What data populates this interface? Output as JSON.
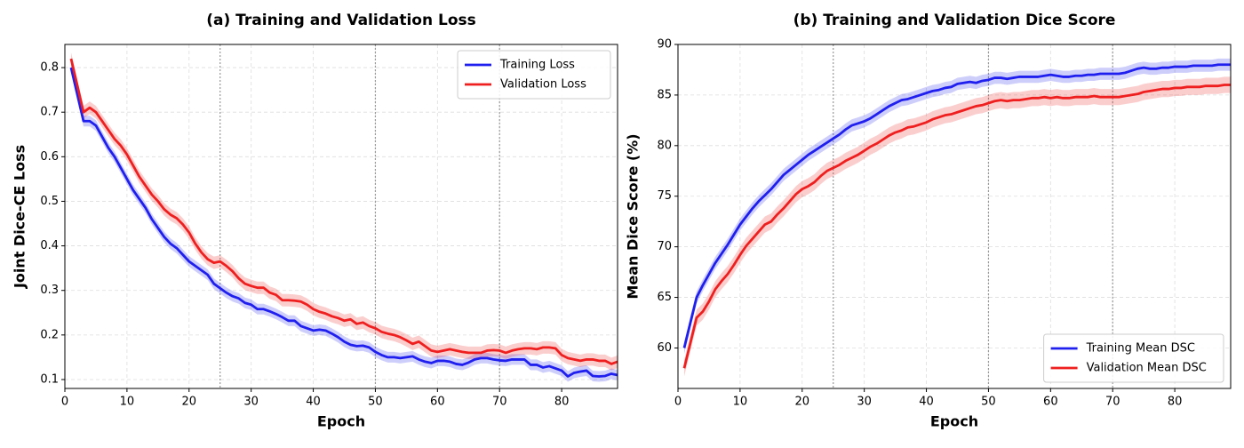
{
  "chart_data": [
    {
      "type": "line",
      "title": "(a) Training and Validation Loss",
      "x_label": "Epoch",
      "y_label": "Joint Dice-CE Loss",
      "x": [
        1,
        2,
        3,
        4,
        5,
        6,
        7,
        8,
        9,
        10,
        11,
        12,
        13,
        14,
        15,
        16,
        17,
        18,
        19,
        20,
        21,
        22,
        23,
        24,
        25,
        26,
        27,
        28,
        29,
        30,
        31,
        32,
        33,
        34,
        35,
        36,
        37,
        38,
        39,
        40,
        41,
        42,
        43,
        44,
        45,
        46,
        47,
        48,
        49,
        50,
        51,
        52,
        53,
        54,
        55,
        56,
        57,
        58,
        59,
        60,
        61,
        62,
        63,
        64,
        65,
        66,
        67,
        68,
        69,
        70,
        71,
        72,
        73,
        74,
        75,
        76,
        77,
        78,
        79,
        80,
        81,
        82,
        83,
        84,
        85,
        86,
        87,
        88,
        89
      ],
      "series": [
        {
          "name": "Training Loss",
          "color": "#1f1fef",
          "band": 0.012,
          "values": [
            0.8,
            0.74,
            0.68,
            0.68,
            0.67,
            0.645,
            0.62,
            0.6,
            0.575,
            0.55,
            0.525,
            0.505,
            0.485,
            0.46,
            0.44,
            0.42,
            0.405,
            0.395,
            0.38,
            0.365,
            0.355,
            0.345,
            0.335,
            0.315,
            0.305,
            0.295,
            0.287,
            0.282,
            0.272,
            0.268,
            0.258,
            0.258,
            0.253,
            0.247,
            0.24,
            0.232,
            0.232,
            0.22,
            0.215,
            0.21,
            0.212,
            0.21,
            0.203,
            0.195,
            0.185,
            0.178,
            0.175,
            0.176,
            0.172,
            0.162,
            0.155,
            0.15,
            0.15,
            0.148,
            0.15,
            0.152,
            0.145,
            0.14,
            0.137,
            0.142,
            0.142,
            0.14,
            0.135,
            0.133,
            0.138,
            0.145,
            0.148,
            0.148,
            0.145,
            0.143,
            0.142,
            0.145,
            0.145,
            0.145,
            0.133,
            0.133,
            0.127,
            0.13,
            0.125,
            0.12,
            0.107,
            0.115,
            0.118,
            0.12,
            0.108,
            0.107,
            0.108,
            0.113,
            0.11
          ]
        },
        {
          "name": "Validation Loss",
          "color": "#ef1f1f",
          "band": 0.014,
          "values": [
            0.82,
            0.76,
            0.7,
            0.71,
            0.7,
            0.68,
            0.66,
            0.64,
            0.625,
            0.605,
            0.58,
            0.555,
            0.535,
            0.515,
            0.5,
            0.482,
            0.47,
            0.462,
            0.448,
            0.43,
            0.405,
            0.385,
            0.37,
            0.362,
            0.365,
            0.355,
            0.343,
            0.327,
            0.315,
            0.31,
            0.306,
            0.306,
            0.295,
            0.29,
            0.278,
            0.278,
            0.277,
            0.275,
            0.268,
            0.258,
            0.252,
            0.248,
            0.242,
            0.238,
            0.232,
            0.235,
            0.225,
            0.228,
            0.22,
            0.215,
            0.207,
            0.203,
            0.2,
            0.195,
            0.188,
            0.18,
            0.185,
            0.175,
            0.165,
            0.162,
            0.165,
            0.168,
            0.165,
            0.162,
            0.16,
            0.16,
            0.16,
            0.165,
            0.166,
            0.165,
            0.16,
            0.165,
            0.168,
            0.17,
            0.17,
            0.168,
            0.172,
            0.172,
            0.17,
            0.155,
            0.148,
            0.145,
            0.142,
            0.145,
            0.145,
            0.142,
            0.142,
            0.135,
            0.14
          ]
        }
      ],
      "xlim": [
        0,
        89
      ],
      "xticks": [
        0,
        10,
        20,
        30,
        40,
        50,
        60,
        70,
        80
      ],
      "ylim": [
        0.08,
        0.852
      ],
      "yticks": [
        0.1,
        0.2,
        0.3,
        0.4,
        0.5,
        0.6,
        0.7,
        0.8
      ],
      "vlines": [
        25,
        50,
        70
      ],
      "grid": true,
      "legend": "upper right"
    },
    {
      "type": "line",
      "title": "(b) Training and Validation Dice Score",
      "x_label": "Epoch",
      "y_label": "Mean Dice Score (%)",
      "x": [
        1,
        2,
        3,
        4,
        5,
        6,
        7,
        8,
        9,
        10,
        11,
        12,
        13,
        14,
        15,
        16,
        17,
        18,
        19,
        20,
        21,
        22,
        23,
        24,
        25,
        26,
        27,
        28,
        29,
        30,
        31,
        32,
        33,
        34,
        35,
        36,
        37,
        38,
        39,
        40,
        41,
        42,
        43,
        44,
        45,
        46,
        47,
        48,
        49,
        50,
        51,
        52,
        53,
        54,
        55,
        56,
        57,
        58,
        59,
        60,
        61,
        62,
        63,
        64,
        65,
        66,
        67,
        68,
        69,
        70,
        71,
        72,
        73,
        74,
        75,
        76,
        77,
        78,
        79,
        80,
        81,
        82,
        83,
        84,
        85,
        86,
        87,
        88,
        89
      ],
      "series": [
        {
          "name": "Training Mean DSC",
          "color": "#1f1fef",
          "band": 0.6,
          "values": [
            60,
            62.5,
            65,
            66.2,
            67.3,
            68.4,
            69.3,
            70.2,
            71.2,
            72.2,
            73,
            73.8,
            74.5,
            75.1,
            75.7,
            76.4,
            77.1,
            77.6,
            78.1,
            78.6,
            79.1,
            79.5,
            79.9,
            80.3,
            80.7,
            81.1,
            81.6,
            82,
            82.2,
            82.4,
            82.7,
            83.1,
            83.5,
            83.9,
            84.2,
            84.5,
            84.6,
            84.8,
            85,
            85.2,
            85.4,
            85.5,
            85.7,
            85.8,
            86.1,
            86.2,
            86.3,
            86.2,
            86.4,
            86.5,
            86.7,
            86.7,
            86.6,
            86.7,
            86.8,
            86.8,
            86.8,
            86.8,
            86.9,
            87,
            86.9,
            86.8,
            86.8,
            86.9,
            86.9,
            87,
            87,
            87.1,
            87.1,
            87.1,
            87.1,
            87.2,
            87.4,
            87.6,
            87.7,
            87.6,
            87.6,
            87.7,
            87.7,
            87.8,
            87.8,
            87.8,
            87.9,
            87.9,
            87.9,
            87.9,
            88,
            88,
            88
          ]
        },
        {
          "name": "Validation Mean DSC",
          "color": "#ef1f1f",
          "band": 0.8,
          "values": [
            58,
            60.5,
            63,
            63.6,
            64.6,
            65.8,
            66.6,
            67.3,
            68.2,
            69.2,
            70.1,
            70.8,
            71.5,
            72.2,
            72.5,
            73.2,
            73.8,
            74.5,
            75.2,
            75.7,
            76,
            76.4,
            77,
            77.5,
            77.8,
            78.1,
            78.5,
            78.8,
            79.1,
            79.5,
            79.9,
            80.2,
            80.6,
            81,
            81.3,
            81.5,
            81.8,
            81.9,
            82.1,
            82.3,
            82.6,
            82.8,
            83,
            83.1,
            83.3,
            83.5,
            83.7,
            83.9,
            84,
            84.2,
            84.4,
            84.5,
            84.4,
            84.5,
            84.5,
            84.6,
            84.7,
            84.7,
            84.8,
            84.7,
            84.8,
            84.7,
            84.7,
            84.8,
            84.8,
            84.8,
            84.9,
            84.8,
            84.8,
            84.8,
            84.8,
            84.9,
            85,
            85.1,
            85.3,
            85.4,
            85.5,
            85.6,
            85.6,
            85.7,
            85.7,
            85.8,
            85.8,
            85.8,
            85.9,
            85.9,
            85.9,
            86,
            86
          ]
        }
      ],
      "xlim": [
        0,
        89
      ],
      "xticks": [
        0,
        10,
        20,
        30,
        40,
        50,
        60,
        70,
        80
      ],
      "ylim": [
        56,
        90
      ],
      "yticks": [
        60,
        65,
        70,
        75,
        80,
        85,
        90
      ],
      "vlines": [
        25,
        50,
        70
      ],
      "grid": true,
      "legend": "lower right"
    }
  ]
}
